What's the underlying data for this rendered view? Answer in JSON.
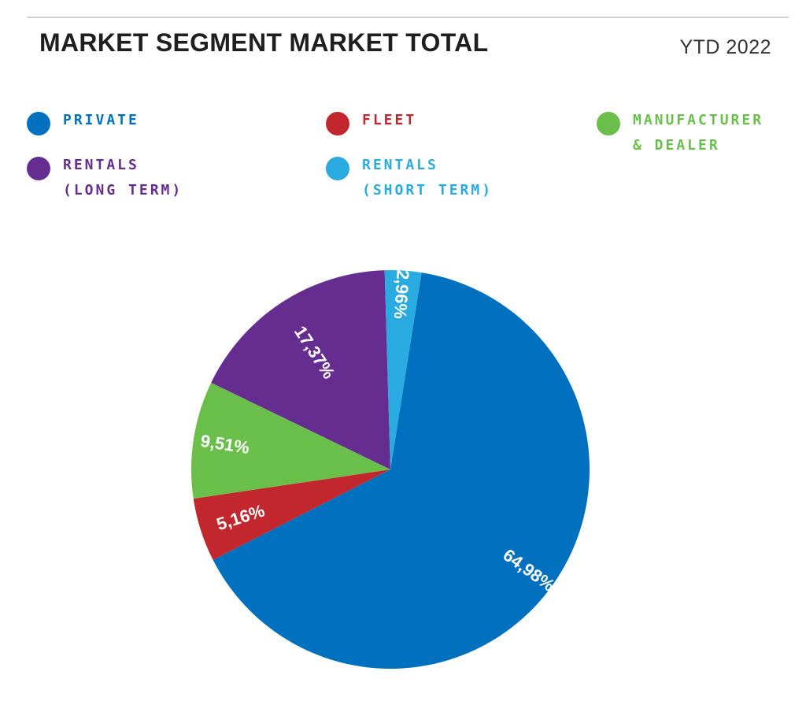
{
  "header": {
    "title": "MARKET SEGMENT MARKET TOTAL",
    "period": "YTD 2022"
  },
  "legend": [
    {
      "label": "PRIVATE",
      "color": "#0070bf"
    },
    {
      "label": "FLEET",
      "color": "#c1272d"
    },
    {
      "label": "MANUFACTURER\n& DEALER",
      "color": "#6abf4b"
    },
    {
      "label": "RENTALS\n(LONG TERM)",
      "color": "#662d91"
    },
    {
      "label": "RENTALS\n(SHORT TERM)",
      "color": "#29abe2"
    }
  ],
  "chart_data": {
    "type": "pie",
    "title": "MARKET SEGMENT MARKET TOTAL",
    "subtitle": "YTD 2022",
    "categories": [
      "PRIVATE",
      "FLEET",
      "MANUFACTURER & DEALER",
      "RENTALS (LONG TERM)",
      "RENTALS (SHORT TERM)"
    ],
    "values": [
      64.98,
      5.16,
      9.51,
      17.37,
      2.96
    ],
    "labels": [
      "64,98%",
      "5,16%",
      "9,51%",
      "17,37%",
      "2,96%"
    ],
    "colors": [
      "#0070bf",
      "#c1272d",
      "#6abf4b",
      "#662d91",
      "#29abe2"
    ],
    "legend_position": "top"
  }
}
